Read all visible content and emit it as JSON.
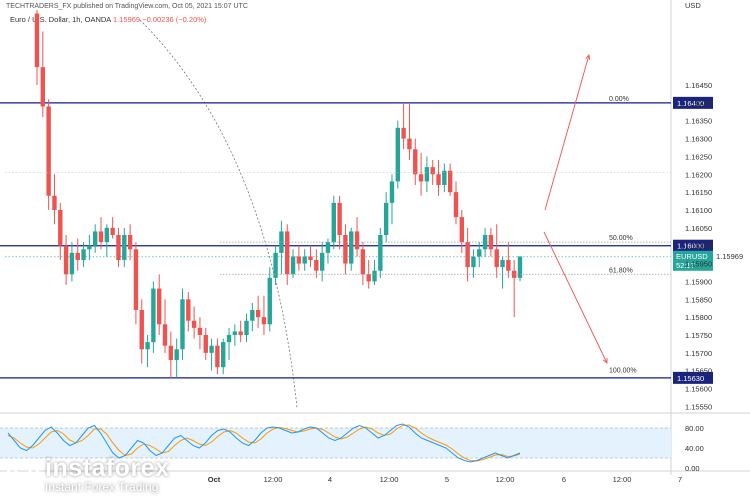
{
  "header": {
    "publisher": "TECHTRADERS_FX published on TradingView.com, Oct 05, 2021 15:07 UTC",
    "instrument": "Euro / U.S. Dollar, 1h, OANDA",
    "last_value": "1.15969",
    "change": "−0.00236 (−0.20%)"
  },
  "watermark": {
    "name": "instaforex",
    "tagline": "Instant Forex Trading"
  },
  "colors": {
    "up": "#26a69a",
    "down": "#ef5350",
    "level_line": "#0d1b9e",
    "arrow": "#ef5350",
    "stoch_k": "#2196f3",
    "stoch_d": "#ff9800"
  },
  "chart_data": {
    "type": "candlestick",
    "symbol_label": "EURUSD",
    "currency": "USD",
    "last_price": "1.15969",
    "countdown": "52:17",
    "ylim": [
      1.1554,
      1.1666
    ],
    "y_ticks": [
      "1.16450",
      "1.16400",
      "1.16350",
      "1.16300",
      "1.16250",
      "1.16200",
      "1.16150",
      "1.16100",
      "1.16050",
      "1.16000",
      "1.15950",
      "1.15900",
      "1.15850",
      "1.15800",
      "1.15750",
      "1.15700",
      "1.15650",
      "1.15600",
      "1.15550"
    ],
    "x_ticks": [
      "Oct",
      "12:00",
      "4",
      "12:00",
      "5",
      "12:00",
      "6",
      "12:00",
      "7"
    ],
    "levels": [
      {
        "price": 1.164,
        "label": "1.16400"
      },
      {
        "price": 1.16,
        "label": "1.16000"
      },
      {
        "price": 1.1563,
        "label": "1.15630"
      }
    ],
    "fib_levels": [
      {
        "label": "0.00%",
        "price": 1.164
      },
      {
        "label": "50.00%",
        "price": 1.1601
      },
      {
        "label": "61.80%",
        "price": 1.1592
      },
      {
        "label": "100.00%",
        "price": 1.1564
      }
    ],
    "candles": [
      [
        1.1665,
        1.1666,
        1.1645,
        1.165
      ],
      [
        1.165,
        1.166,
        1.1636,
        1.1639
      ],
      [
        1.1639,
        1.1641,
        1.161,
        1.1614
      ],
      [
        1.1614,
        1.162,
        1.1606,
        1.161
      ],
      [
        1.161,
        1.1612,
        1.1596,
        1.16
      ],
      [
        1.16,
        1.1603,
        1.1589,
        1.1592
      ],
      [
        1.1592,
        1.1601,
        1.159,
        1.1598
      ],
      [
        1.1598,
        1.1602,
        1.1593,
        1.1596
      ],
      [
        1.1596,
        1.1601,
        1.1594,
        1.1599
      ],
      [
        1.1599,
        1.1603,
        1.1596,
        1.16
      ],
      [
        1.16,
        1.1606,
        1.1598,
        1.1604
      ],
      [
        1.1604,
        1.1608,
        1.1599,
        1.1601
      ],
      [
        1.1601,
        1.1606,
        1.1597,
        1.1605
      ],
      [
        1.1605,
        1.1608,
        1.1602,
        1.1603
      ],
      [
        1.1603,
        1.1605,
        1.1594,
        1.1596
      ],
      [
        1.1596,
        1.1605,
        1.1594,
        1.1603
      ],
      [
        1.1603,
        1.1606,
        1.1596,
        1.1599
      ],
      [
        1.1599,
        1.1601,
        1.1578,
        1.1582
      ],
      [
        1.1582,
        1.1585,
        1.1567,
        1.1571
      ],
      [
        1.1571,
        1.1575,
        1.1566,
        1.1573
      ],
      [
        1.1573,
        1.159,
        1.157,
        1.1588
      ],
      [
        1.1588,
        1.1592,
        1.1575,
        1.1578
      ],
      [
        1.1578,
        1.1585,
        1.157,
        1.1572
      ],
      [
        1.1572,
        1.1576,
        1.1563,
        1.1568
      ],
      [
        1.1568,
        1.1574,
        1.1563,
        1.1571
      ],
      [
        1.1571,
        1.1588,
        1.1568,
        1.1585
      ],
      [
        1.1585,
        1.1587,
        1.1576,
        1.1579
      ],
      [
        1.1579,
        1.1583,
        1.1574,
        1.1577
      ],
      [
        1.1577,
        1.158,
        1.1571,
        1.1575
      ],
      [
        1.1575,
        1.1577,
        1.1568,
        1.157
      ],
      [
        1.157,
        1.1574,
        1.1565,
        1.1572
      ],
      [
        1.1572,
        1.1574,
        1.1564,
        1.1566
      ],
      [
        1.1566,
        1.1574,
        1.1564,
        1.1573
      ],
      [
        1.1573,
        1.1577,
        1.1568,
        1.1575
      ],
      [
        1.1575,
        1.1578,
        1.1572,
        1.1576
      ],
      [
        1.1576,
        1.1579,
        1.1573,
        1.1575
      ],
      [
        1.1575,
        1.1581,
        1.1573,
        1.1579
      ],
      [
        1.1579,
        1.1584,
        1.1576,
        1.1582
      ],
      [
        1.1582,
        1.1586,
        1.1577,
        1.158
      ],
      [
        1.158,
        1.1586,
        1.1575,
        1.1578
      ],
      [
        1.1578,
        1.1594,
        1.1576,
        1.1591
      ],
      [
        1.1591,
        1.16,
        1.1589,
        1.1598
      ],
      [
        1.1598,
        1.1607,
        1.1592,
        1.1604
      ],
      [
        1.1604,
        1.1606,
        1.1589,
        1.1592
      ],
      [
        1.1592,
        1.1599,
        1.1591,
        1.1597
      ],
      [
        1.1597,
        1.16,
        1.1593,
        1.1595
      ],
      [
        1.1595,
        1.1599,
        1.1593,
        1.1597
      ],
      [
        1.1597,
        1.16,
        1.1594,
        1.1596
      ],
      [
        1.1596,
        1.1599,
        1.1591,
        1.1593
      ],
      [
        1.1593,
        1.1601,
        1.159,
        1.1598
      ],
      [
        1.1598,
        1.1602,
        1.1595,
        1.1601
      ],
      [
        1.1601,
        1.1614,
        1.1599,
        1.1612
      ],
      [
        1.1612,
        1.1614,
        1.1599,
        1.1603
      ],
      [
        1.1603,
        1.1606,
        1.1592,
        1.1595
      ],
      [
        1.1595,
        1.1605,
        1.1593,
        1.1604
      ],
      [
        1.1604,
        1.1608,
        1.1597,
        1.1599
      ],
      [
        1.1599,
        1.1601,
        1.1589,
        1.1592
      ],
      [
        1.1592,
        1.1596,
        1.1588,
        1.159
      ],
      [
        1.159,
        1.1596,
        1.1589,
        1.1593
      ],
      [
        1.1593,
        1.1605,
        1.1591,
        1.1603
      ],
      [
        1.1603,
        1.1615,
        1.1601,
        1.1612
      ],
      [
        1.1612,
        1.162,
        1.1606,
        1.1618
      ],
      [
        1.1618,
        1.1635,
        1.1616,
        1.1633
      ],
      [
        1.1633,
        1.164,
        1.1627,
        1.163
      ],
      [
        1.163,
        1.164,
        1.1624,
        1.1627
      ],
      [
        1.1627,
        1.163,
        1.1617,
        1.162
      ],
      [
        1.162,
        1.1626,
        1.1614,
        1.1618
      ],
      [
        1.1618,
        1.1625,
        1.1615,
        1.1622
      ],
      [
        1.1622,
        1.1624,
        1.1617,
        1.162
      ],
      [
        1.162,
        1.1624,
        1.1614,
        1.1617
      ],
      [
        1.1617,
        1.1623,
        1.1615,
        1.1621
      ],
      [
        1.1621,
        1.1623,
        1.1614,
        1.1615
      ],
      [
        1.1615,
        1.1618,
        1.1606,
        1.1608
      ],
      [
        1.1608,
        1.161,
        1.1598,
        1.1601
      ],
      [
        1.1601,
        1.1605,
        1.159,
        1.1594
      ],
      [
        1.1594,
        1.1599,
        1.1591,
        1.1597
      ],
      [
        1.1597,
        1.1601,
        1.1594,
        1.1599
      ],
      [
        1.1599,
        1.1605,
        1.1597,
        1.1603
      ],
      [
        1.1603,
        1.1605,
        1.1597,
        1.1599
      ],
      [
        1.1599,
        1.1606,
        1.1591,
        1.1594
      ],
      [
        1.1594,
        1.1597,
        1.1588,
        1.1596
      ],
      [
        1.1596,
        1.1601,
        1.1591,
        1.1593
      ],
      [
        1.1593,
        1.1596,
        1.158,
        1.1591
      ],
      [
        1.1591,
        1.1597,
        1.159,
        1.1597
      ]
    ],
    "stochastic": {
      "ylim": [
        0,
        100
      ],
      "y_ticks": [
        "80.00",
        "40.00",
        "0.00"
      ],
      "band": [
        20,
        80
      ],
      "k": [
        70,
        55,
        40,
        35,
        45,
        60,
        75,
        82,
        70,
        55,
        45,
        50,
        65,
        80,
        85,
        70,
        50,
        30,
        20,
        25,
        40,
        55,
        50,
        35,
        25,
        30,
        45,
        60,
        65,
        55,
        45,
        40,
        50,
        65,
        75,
        78,
        72,
        60,
        50,
        45,
        55,
        70,
        80,
        82,
        80,
        75,
        70,
        72,
        78,
        82,
        80,
        70,
        60,
        55,
        60,
        70,
        80,
        85,
        80,
        70,
        60,
        65,
        75,
        85,
        88,
        82,
        70,
        60,
        55,
        50,
        45,
        40,
        30,
        20,
        15,
        12,
        15,
        20,
        25,
        30,
        25,
        20,
        25,
        30
      ],
      "d": [
        65,
        60,
        50,
        42,
        40,
        48,
        60,
        72,
        75,
        68,
        56,
        50,
        55,
        65,
        78,
        78,
        68,
        50,
        35,
        25,
        28,
        40,
        48,
        45,
        38,
        30,
        33,
        45,
        55,
        60,
        55,
        48,
        45,
        52,
        63,
        72,
        75,
        70,
        60,
        52,
        50,
        58,
        70,
        78,
        81,
        79,
        75,
        72,
        74,
        78,
        80,
        77,
        70,
        62,
        58,
        62,
        70,
        78,
        82,
        78,
        70,
        65,
        68,
        78,
        85,
        86,
        80,
        70,
        62,
        56,
        51,
        46,
        38,
        28,
        20,
        15,
        14,
        17,
        21,
        26,
        27,
        23,
        24,
        28
      ]
    }
  }
}
